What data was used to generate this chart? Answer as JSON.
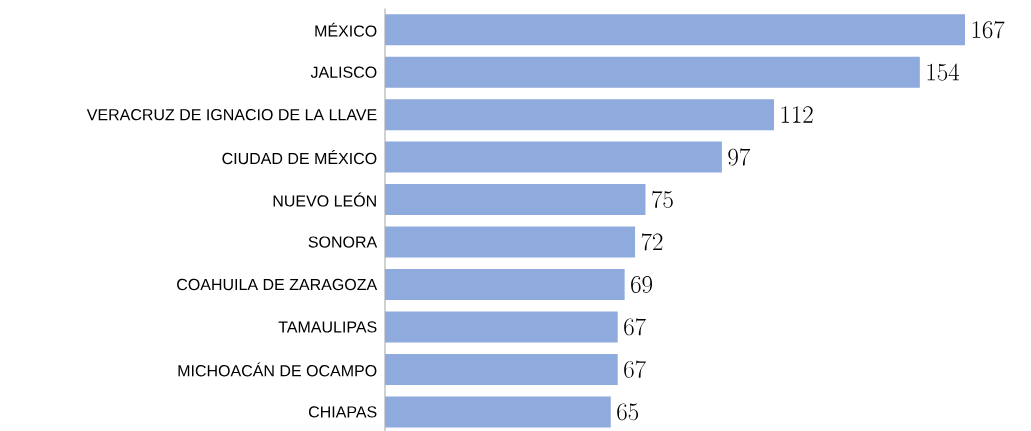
{
  "chart_data": {
    "type": "bar",
    "orientation": "horizontal",
    "categories": [
      "MÉXICO",
      "JALISCO",
      "VERACRUZ DE IGNACIO DE LA LLAVE",
      "CIUDAD DE MÉXICO",
      "NUEVO LEÓN",
      "SONORA",
      "COAHUILA DE ZARAGOZA",
      "TAMAULIPAS",
      "MICHOACÁN DE OCAMPO",
      "CHIAPAS"
    ],
    "values": [
      167,
      154,
      112,
      97,
      75,
      72,
      69,
      67,
      67,
      65
    ],
    "color": "#8faadc",
    "data_labels": true
  }
}
